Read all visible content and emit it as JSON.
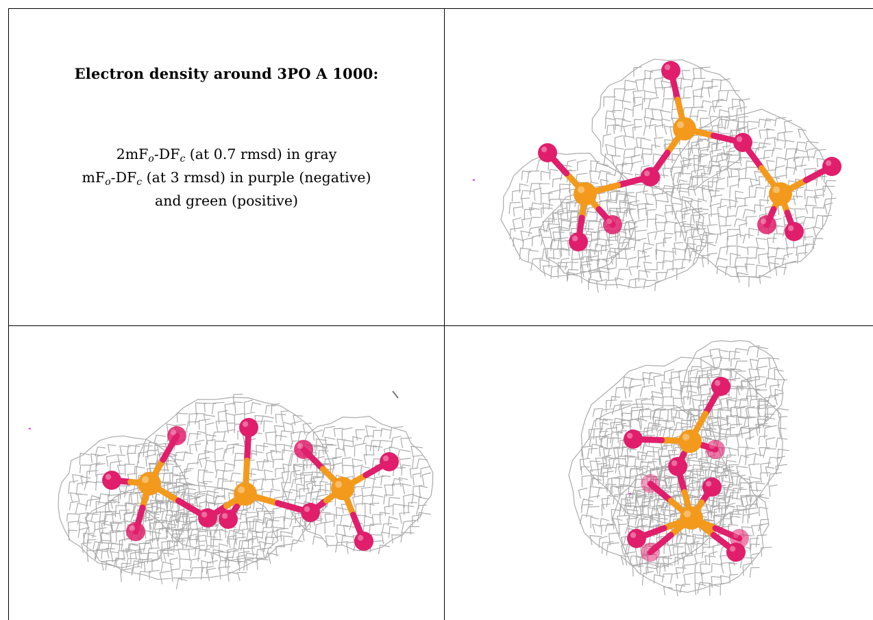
{
  "heading": "Electron density around 3PO A 1000:",
  "legend": {
    "line1": {
      "a": "2mF",
      "s1": "o",
      "b": "-DF",
      "s2": "c",
      "c": " (at 0.7 rmsd) in gray"
    },
    "line2": {
      "a": "mF",
      "s1": "o",
      "b": "-DF",
      "s2": "c",
      "c": " (at 3 rmsd) in purple (negative)"
    },
    "line3": "and green (positive)"
  },
  "colors": {
    "mesh": "#aaaaaa",
    "phosphorus": "#f39a1c",
    "oxygen": "#e01e6c",
    "negative_density": "#d81fd8",
    "grid_lines": "#000000"
  },
  "views": [
    {
      "name": "view-top-right",
      "content": "ball-and-stick molecule with gray density mesh"
    },
    {
      "name": "view-bottom-left",
      "content": "ball-and-stick molecule with gray density mesh"
    },
    {
      "name": "view-bottom-right",
      "content": "ball-and-stick molecule with gray density mesh"
    }
  ]
}
